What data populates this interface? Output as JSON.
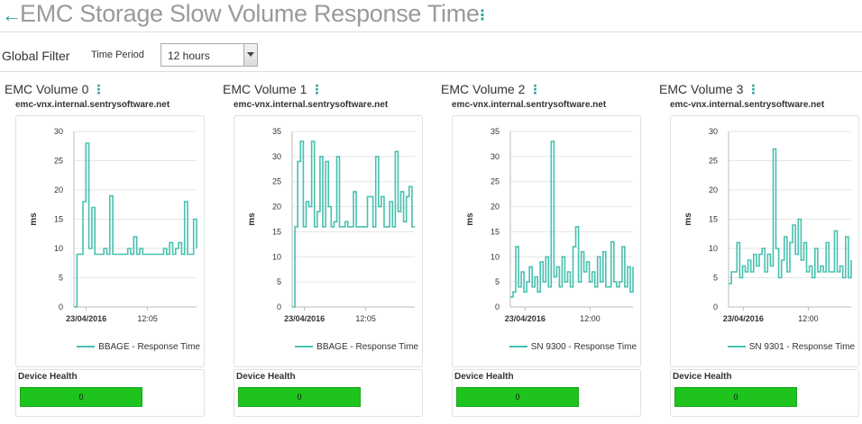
{
  "header": {
    "title": "EMC Storage Slow Volume Response Time"
  },
  "filter": {
    "label": "Global Filter",
    "period_label": "Time Period",
    "period_value": "12 hours"
  },
  "colors": {
    "accent": "#2aa198",
    "series": "#48c0b0",
    "health_ok": "#1ec31e"
  },
  "panels": [
    {
      "title": "EMC Volume 0",
      "host": "emc-vnx.internal.sentrysoftware.net",
      "health": {
        "label": "Device Health",
        "value": "0"
      },
      "chart_data": {
        "type": "line",
        "ylabel": "ms",
        "y_ticks": [
          "0",
          "5",
          "10",
          "15",
          "20",
          "25",
          "30"
        ],
        "ylim": [
          0,
          30
        ],
        "x_ticks": [
          "23/04/2016",
          "12:05"
        ],
        "x_tick_pos": [
          0.1,
          0.6
        ],
        "series": [
          {
            "name": "BBAGE - Response Time",
            "values": [
              0,
              9,
              9,
              18,
              28,
              10,
              17,
              9,
              9,
              9,
              10,
              9,
              19,
              9,
              9,
              9,
              9,
              9,
              10,
              9,
              12,
              9,
              10,
              9,
              9,
              9,
              9,
              9,
              9,
              9,
              10,
              9,
              11,
              9,
              10,
              11,
              9,
              18,
              9,
              9,
              15,
              10
            ]
          }
        ]
      }
    },
    {
      "title": "EMC Volume 1",
      "host": "emc-vnx.internal.sentrysoftware.net",
      "health": {
        "label": "Device Health",
        "value": "0"
      },
      "chart_data": {
        "type": "line",
        "ylabel": "ms",
        "y_ticks": [
          "0",
          "5",
          "10",
          "15",
          "20",
          "25",
          "30",
          "35"
        ],
        "ylim": [
          0,
          35
        ],
        "x_ticks": [
          "23/04/2016",
          "12:05"
        ],
        "x_tick_pos": [
          0.1,
          0.6
        ],
        "series": [
          {
            "name": "BBAGE - Response Time",
            "values": [
              0,
              16,
              29,
              33,
              16,
              21,
              20,
              33,
              16,
              19,
              30,
              16,
              29,
              20,
              16,
              17,
              30,
              16,
              16,
              17,
              16,
              16,
              23,
              16,
              16,
              16,
              16,
              22,
              22,
              16,
              30,
              20,
              22,
              16,
              16,
              21,
              16,
              31,
              19,
              23,
              17,
              22,
              24,
              16,
              16
            ]
          }
        ]
      }
    },
    {
      "title": "EMC Volume 2",
      "host": "emc-vnx.internal.sentrysoftware.net",
      "health": {
        "label": "Device Health",
        "value": "0"
      },
      "chart_data": {
        "type": "line",
        "ylabel": "ms",
        "y_ticks": [
          "0",
          "5",
          "10",
          "15",
          "20",
          "25",
          "30",
          "35"
        ],
        "ylim": [
          0,
          35
        ],
        "x_ticks": [
          "23/04/2016",
          "12:00"
        ],
        "x_tick_pos": [
          0.12,
          0.65
        ],
        "series": [
          {
            "name": "SN 9300 - Response Time",
            "values": [
              2,
              3,
              12,
              4,
              7,
              3,
              5,
              8,
              4,
              6,
              3,
              9,
              5,
              10,
              4,
              33,
              6,
              8,
              4,
              10,
              5,
              7,
              4,
              12,
              16,
              5,
              11,
              7,
              9,
              5,
              7,
              4,
              10,
              5,
              11,
              4,
              4,
              13,
              5,
              4,
              5,
              12,
              4,
              8,
              3,
              8
            ]
          }
        ]
      }
    },
    {
      "title": "EMC Volume 3",
      "host": "emc-vnx.internal.sentrysoftware.net",
      "health": {
        "label": "Device Health",
        "value": "0"
      },
      "chart_data": {
        "type": "line",
        "ylabel": "ms",
        "y_ticks": [
          "0",
          "5",
          "10",
          "15",
          "20",
          "25",
          "30"
        ],
        "ylim": [
          0,
          30
        ],
        "x_ticks": [
          "23/04/2016",
          "12:00"
        ],
        "x_tick_pos": [
          0.12,
          0.65
        ],
        "series": [
          {
            "name": "SN 9301 - Response Time",
            "values": [
              4,
              6,
              6,
              11,
              5,
              7,
              6,
              8,
              6,
              9,
              7,
              9,
              10,
              6,
              9,
              7,
              27,
              10,
              5,
              8,
              12,
              6,
              11,
              14,
              9,
              15,
              8,
              11,
              6,
              7,
              5,
              10,
              6,
              7,
              6,
              11,
              6,
              6,
              13,
              6,
              7,
              5,
              12,
              5,
              8
            ]
          }
        ]
      }
    }
  ]
}
